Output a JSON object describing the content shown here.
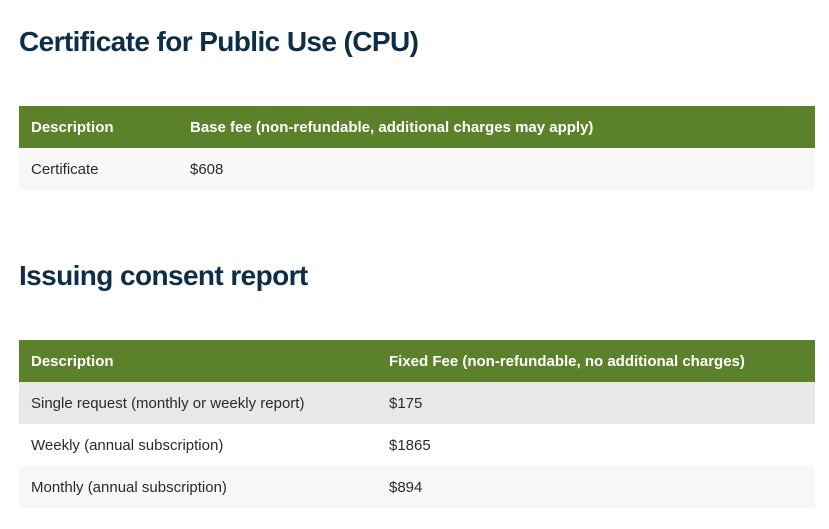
{
  "sections": [
    {
      "title": "Certificate for Public Use (CPU)",
      "table": {
        "header": [
          "Description",
          "Base fee (non-refundable, additional charges may apply)"
        ],
        "rows": [
          [
            "Certificate",
            "$608"
          ]
        ]
      }
    },
    {
      "title": "Issuing consent report",
      "table": {
        "header": [
          "Description",
          "Fixed Fee (non-refundable, no additional charges)"
        ],
        "rows": [
          [
            "Single request (monthly or weekly report)",
            "$175"
          ],
          [
            "Weekly (annual subscription)",
            "$1865"
          ],
          [
            "Monthly (annual subscription)",
            "$894"
          ]
        ]
      }
    }
  ]
}
